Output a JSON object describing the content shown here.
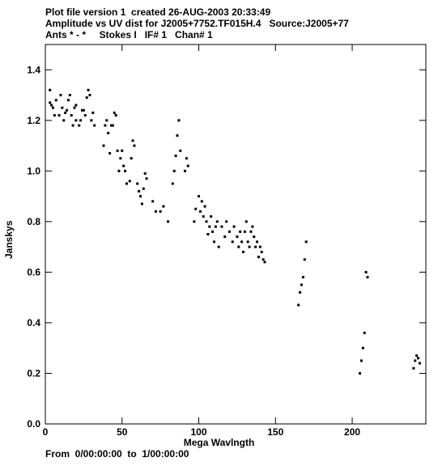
{
  "header": {
    "line1": "Plot file version 1  created 26-AUG-2003 20:33:49",
    "line2": "Amplitude vs UV dist for J2005+7752.TF015H.4   Source:J2005+77",
    "line3": "Ants * - *     Stokes I   IF# 1   Chan# 1"
  },
  "footer": "From  0/00:00:00  to  1/00:00:00",
  "chart_data": {
    "type": "scatter",
    "xlabel": "Mega Wavlngth",
    "ylabel": "Janskys",
    "xlim": [
      0,
      248
    ],
    "ylim": [
      0.0,
      1.5
    ],
    "xticks": [
      0,
      50,
      100,
      150,
      200
    ],
    "yticks": [
      0.0,
      0.2,
      0.4,
      0.6,
      0.8,
      1.0,
      1.2,
      1.4
    ],
    "ytick_labels": [
      "0.0",
      "0.2",
      "0.4",
      "0.6",
      "0.8",
      "1.0",
      "1.2",
      "1.4"
    ],
    "series": [
      {
        "x": [
          3,
          3,
          4,
          5,
          6,
          7,
          9,
          10,
          11,
          12,
          13,
          14,
          15,
          16,
          17,
          18,
          19,
          20,
          20,
          22,
          23,
          24,
          25,
          26,
          27,
          28,
          29,
          30,
          31,
          32,
          38,
          39,
          40,
          41,
          42,
          43,
          44,
          45,
          46,
          47,
          48,
          49,
          50,
          51,
          52,
          53,
          55,
          56,
          57,
          58,
          60,
          61,
          62,
          63,
          64,
          65,
          66,
          70,
          72,
          75,
          77,
          80,
          83,
          84,
          85,
          86,
          87,
          88,
          91,
          92,
          93,
          97,
          98,
          100,
          101,
          102,
          103,
          104,
          105,
          106,
          107,
          108,
          109,
          110,
          111,
          112,
          113,
          115,
          117,
          118,
          120,
          122,
          123,
          125,
          126,
          127,
          128,
          129,
          130,
          131,
          132,
          133,
          134,
          135,
          136,
          137,
          138,
          139,
          140,
          141,
          142,
          143,
          165,
          166,
          167,
          168,
          169,
          170,
          205,
          206,
          207,
          208,
          209,
          210,
          240,
          241,
          242,
          243,
          244
        ],
        "y": [
          1.27,
          1.32,
          1.26,
          1.25,
          1.22,
          1.28,
          1.22,
          1.3,
          1.25,
          1.2,
          1.23,
          1.24,
          1.28,
          1.3,
          1.22,
          1.18,
          1.25,
          1.26,
          1.2,
          1.18,
          1.2,
          1.24,
          1.24,
          1.22,
          1.29,
          1.32,
          1.3,
          1.2,
          1.23,
          1.18,
          1.1,
          1.18,
          1.2,
          1.15,
          1.07,
          1.18,
          1.18,
          1.23,
          1.22,
          1.08,
          1.0,
          1.05,
          1.08,
          1.02,
          1.0,
          0.95,
          0.96,
          1.05,
          1.12,
          1.1,
          0.95,
          0.92,
          0.9,
          0.87,
          0.93,
          0.99,
          0.97,
          0.88,
          0.84,
          0.84,
          0.86,
          0.8,
          0.95,
          1.0,
          1.06,
          1.14,
          1.2,
          1.08,
          1.0,
          1.05,
          1.02,
          0.8,
          0.85,
          0.9,
          0.84,
          0.88,
          0.82,
          0.86,
          0.8,
          0.75,
          0.78,
          0.82,
          0.76,
          0.72,
          0.78,
          0.8,
          0.7,
          0.78,
          0.74,
          0.8,
          0.76,
          0.72,
          0.78,
          0.74,
          0.7,
          0.76,
          0.72,
          0.68,
          0.76,
          0.8,
          0.72,
          0.7,
          0.76,
          0.78,
          0.74,
          0.7,
          0.72,
          0.66,
          0.7,
          0.68,
          0.65,
          0.64,
          0.47,
          0.52,
          0.55,
          0.58,
          0.65,
          0.72,
          0.2,
          0.25,
          0.3,
          0.36,
          0.6,
          0.58,
          0.22,
          0.25,
          0.27,
          0.26,
          0.24
        ]
      }
    ]
  }
}
